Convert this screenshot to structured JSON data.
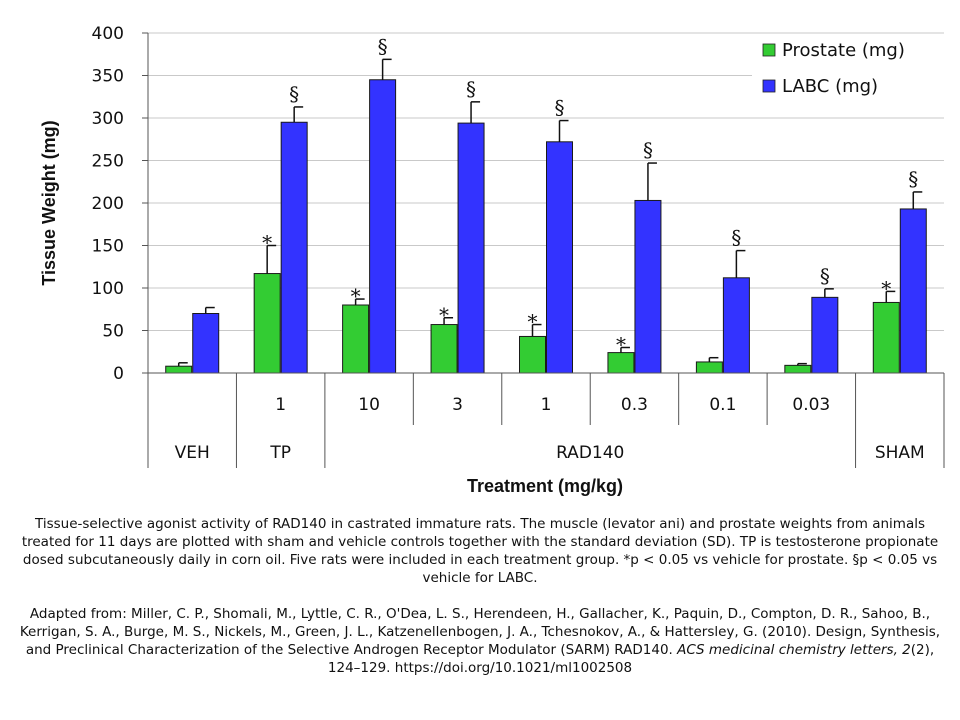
{
  "chart_data": {
    "type": "bar",
    "ylabel": "Tissue Weight (mg)",
    "xlabel": "Treatment (mg/kg)",
    "ylim": [
      0,
      400
    ],
    "yticks": [
      "0",
      "50",
      "100",
      "150",
      "200",
      "250",
      "300",
      "350",
      "400"
    ],
    "doses": [
      "",
      "1",
      "10",
      "3",
      "1",
      "0.3",
      "0.1",
      "0.03",
      ""
    ],
    "groups": [
      {
        "label": "VEH",
        "span": [
          0,
          0
        ]
      },
      {
        "label": "TP",
        "span": [
          1,
          1
        ]
      },
      {
        "label": "RAD140",
        "span": [
          2,
          7
        ]
      },
      {
        "label": "SHAM",
        "span": [
          8,
          8
        ]
      }
    ],
    "legend_position": "top-right",
    "grid": true,
    "series": [
      {
        "name": "Prostate (mg)",
        "color": "#33cc33",
        "values": [
          8,
          117,
          80,
          57,
          43,
          24,
          13,
          9,
          83
        ],
        "errors": [
          4,
          33,
          7,
          8,
          14,
          6,
          5,
          2,
          13
        ],
        "marks": [
          "",
          "*",
          "*",
          "*",
          "*",
          "*",
          "",
          "",
          "*"
        ]
      },
      {
        "name": "LABC (mg)",
        "color": "#3333ff",
        "values": [
          70,
          295,
          345,
          294,
          272,
          203,
          112,
          89,
          193
        ],
        "errors": [
          7,
          18,
          24,
          25,
          25,
          44,
          32,
          10,
          20
        ],
        "marks": [
          "",
          "§",
          "§",
          "§",
          "§",
          "§",
          "§",
          "§",
          "§"
        ]
      }
    ]
  },
  "caption": {
    "text": "Tissue-selective agonist activity of RAD140 in castrated immature rats. The muscle (levator ani) and prostate weights from animals treated for 11 days are plotted with sham and vehicle controls together with the standard deviation (SD). TP is testosterone propionate dosed subcutaneously daily in corn oil. Five rats were included in each treatment group. *p < 0.05 vs vehicle for prostate. §p < 0.05 vs vehicle for LABC.",
    "ref_prefix": "Adapted from: Miller, C. P., Shomali, M., Lyttle, C. R., O'Dea, L. S., Herendeen, H., Gallacher, K., Paquin, D., Compton, D. R., Sahoo, B., Kerrigan, S. A., Burge, M. S., Nickels, M., Green, J. L., Katzenellenbogen, J. A., Tchesnokov, A., & Hattersley, G. (2010). Design, Synthesis, and Preclinical Characterization of the Selective Androgen Receptor Modulator (SARM) RAD140. ",
    "ref_journal": "ACS medicinal chemistry letters, 2",
    "ref_suffix": "(2), 124–129. https://doi.org/10.1021/ml1002508"
  }
}
